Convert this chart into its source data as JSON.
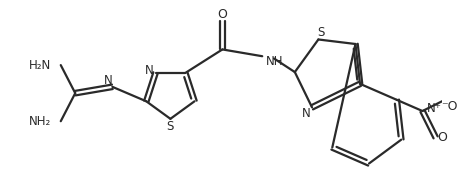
{
  "background_color": "#ffffff",
  "line_color": "#2a2a2a",
  "line_width": 1.6,
  "dbo": 0.055,
  "figsize": [
    4.63,
    1.96
  ],
  "dpi": 100,
  "xlim": [
    0.0,
    9.3
  ],
  "ylim": [
    -0.5,
    3.8
  ]
}
